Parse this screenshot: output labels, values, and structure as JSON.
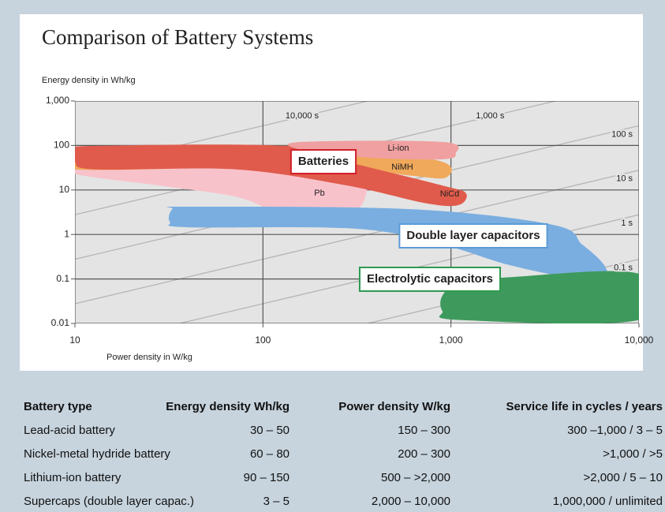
{
  "chart_data": {
    "type": "region",
    "title": "Comparison of Battery Systems",
    "y_label": "Energy density in Wh/kg",
    "x_label": "Power density in W/kg",
    "log_x": true,
    "log_y": true,
    "grid": true,
    "xlim": [
      10,
      10000
    ],
    "xticks": [
      10,
      100,
      {
        "value": 1000,
        "label": "1,000"
      },
      {
        "value": 10000,
        "label": "10,000"
      }
    ],
    "ylim": [
      0.01,
      1000
    ],
    "yticks": [
      0.01,
      0.1,
      1,
      10,
      100,
      {
        "value": 1000,
        "label": "1,000"
      }
    ],
    "time_lines": [
      {
        "value": 10000,
        "label": "10,000 s"
      },
      {
        "value": 1000,
        "label": "1,000 s"
      },
      {
        "value": 100,
        "label": "100 s"
      },
      {
        "value": 10,
        "label": "10 s"
      },
      {
        "value": 1,
        "label": "1 s"
      },
      {
        "value": 0.1,
        "label": "0.1 s"
      }
    ],
    "regions": [
      {
        "name": "Pb",
        "color": "#f8c2cb",
        "x": [
          10,
          10,
          28,
          72,
          130,
          280,
          350,
          310,
          100,
          28
        ],
        "y": [
          43,
          23,
          12.6,
          7,
          3,
          3,
          7,
          19,
          35,
          53
        ]
      },
      {
        "name": "NiMH",
        "color": "#f0a85a",
        "x": [
          10,
          72,
          310,
          900,
          940,
          610,
          190,
          10
        ],
        "y": [
          80,
          98,
          87,
          43,
          19,
          21,
          35,
          29
        ]
      },
      {
        "name": "NiCd",
        "color": "#e05b4b",
        "x": [
          10,
          13,
          130,
          280,
          900,
          1200,
          1100,
          740,
          280,
          72,
          13,
          10
        ],
        "y": [
          80,
          98,
          98,
          43,
          12.6,
          8.5,
          4.6,
          5,
          12.6,
          29,
          29,
          43
        ]
      },
      {
        "name": "Li-ion",
        "color": "#f0a0a0",
        "x": [
          160,
          900,
          1060,
          900,
          375,
          160
        ],
        "y": [
          120,
          120,
          65,
          49,
          53,
          80
        ]
      },
      {
        "name": "Double layer capacitors",
        "color": "#7aaee0",
        "x": [
          33,
          40,
          610,
          3500,
          5000,
          6500,
          6500,
          4200,
          2000,
          900,
          310,
          40,
          32
        ],
        "y": [
          3.7,
          4.2,
          3.7,
          1.64,
          0.59,
          0.21,
          0.11,
          0.11,
          0.21,
          0.59,
          1.35,
          1.45,
          1.9
        ]
      },
      {
        "name": "Electrolytic capacitors",
        "color": "#3e9a5c",
        "x": [
          900,
          1100,
          2100,
          10000,
          10000,
          1100,
          900
        ],
        "y": [
          0.042,
          0.077,
          0.11,
          0.13,
          0.012,
          0.012,
          0.019
        ]
      }
    ],
    "annotations": [
      {
        "text": "Batteries",
        "color": "#d0202a"
      },
      {
        "text": "Double layer capacitors",
        "color": "#5b9bd5"
      },
      {
        "text": "Electrolytic capacitors",
        "color": "#2e9a50"
      }
    ]
  },
  "table": {
    "header": [
      "Battery type",
      "Energy density Wh/kg",
      "Power density W/kg",
      "Service life in cycles / years"
    ],
    "rows": [
      [
        "Lead-acid battery",
        "30 – 50",
        "150 – 300",
        "300 –1,000 / 3 – 5"
      ],
      [
        "Nickel-metal hydride battery",
        "60 – 80",
        "200 – 300",
        ">1,000 / >5"
      ],
      [
        "Lithium-ion battery",
        "90 – 150",
        "500 – >2,000",
        ">2,000 / 5 – 10"
      ],
      [
        "Supercaps (double layer capac.)",
        "3 – 5",
        "2,000 – 10,000",
        "1,000,000 / unlimited"
      ]
    ]
  }
}
